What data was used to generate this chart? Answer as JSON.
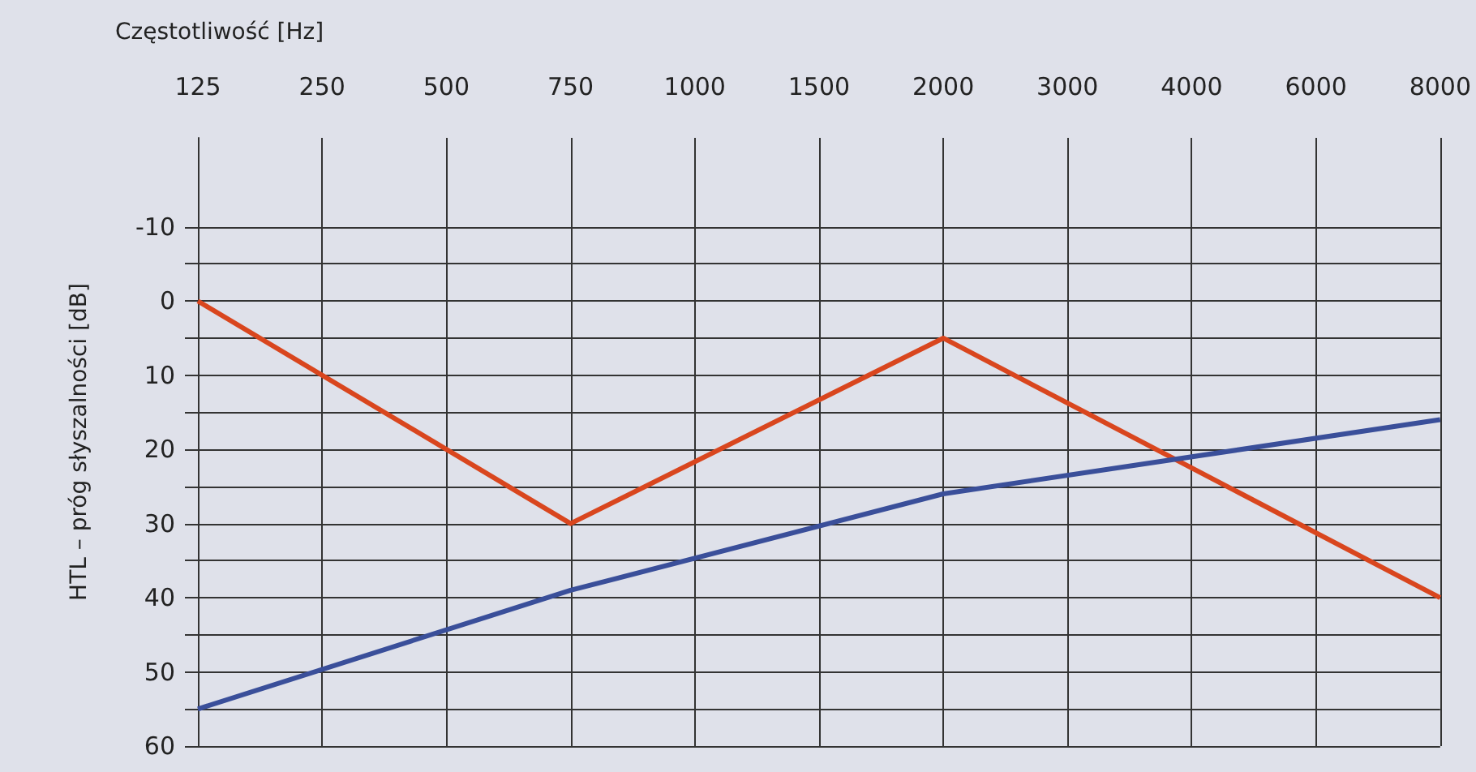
{
  "chart_data": {
    "type": "line",
    "xlabel": "Częstotliwość [Hz]",
    "ylabel": "HTL – próg słyszalności [dB]",
    "categories": [
      "125",
      "250",
      "500",
      "750",
      "1000",
      "1500",
      "2000",
      "3000",
      "4000",
      "6000",
      "8000"
    ],
    "series": [
      {
        "color": "#d9461e",
        "values": [
          0,
          null,
          null,
          30,
          null,
          null,
          5,
          null,
          null,
          null,
          40
        ]
      },
      {
        "color": "#3a4f9a",
        "values": [
          55,
          null,
          null,
          39,
          null,
          null,
          26,
          null,
          null,
          null,
          16
        ]
      }
    ],
    "ylim": [
      60,
      -22
    ],
    "yticks": [
      -10,
      {
        "value": -5,
        "label": null
      },
      0,
      {
        "value": 5,
        "label": null
      },
      10,
      {
        "value": 15,
        "label": null
      },
      20,
      {
        "value": 25,
        "label": null
      },
      30,
      {
        "value": 35,
        "label": null
      },
      40,
      {
        "value": 45,
        "label": null
      },
      50,
      {
        "value": 55,
        "label": null
      },
      60
    ],
    "grid": true,
    "marker": "none",
    "line_style": "solid"
  }
}
